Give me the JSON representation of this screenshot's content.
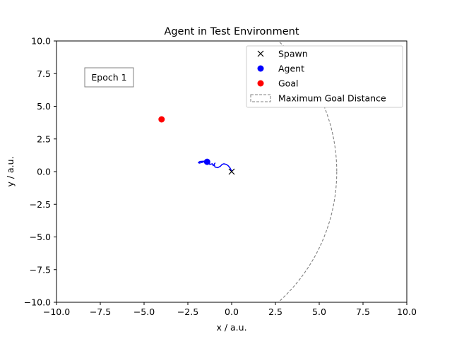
{
  "chart_data": {
    "type": "scatter",
    "title": "Agent in Test Environment",
    "xlabel": "x / a.u.",
    "ylabel": "y / a.u.",
    "xlim": [
      -10,
      10
    ],
    "ylim": [
      -10,
      10
    ],
    "xticks": [
      -10,
      -7.5,
      -5,
      -2.5,
      0,
      2.5,
      5,
      7.5,
      10
    ],
    "yticks": [
      -10,
      -7.5,
      -5,
      -2.5,
      0,
      2.5,
      5,
      7.5,
      10
    ],
    "xtick_labels": [
      "−10.0",
      "−7.5",
      "−5.0",
      "−2.5",
      "0.0",
      "2.5",
      "5.0",
      "7.5",
      "10.0"
    ],
    "ytick_labels": [
      "−10.0",
      "−7.5",
      "−5.0",
      "−2.5",
      "0.0",
      "2.5",
      "5.0",
      "7.5",
      "10.0"
    ],
    "grid": false,
    "annotation": "Epoch 1",
    "legend": {
      "placement": "top-right",
      "entries": [
        {
          "label": "Spawn",
          "marker": "x",
          "color": "#000000"
        },
        {
          "label": "Agent",
          "marker": "circle",
          "color": "#0000ff"
        },
        {
          "label": "Goal",
          "marker": "circle",
          "color": "#ff0000"
        },
        {
          "label": "Maximum Goal Distance",
          "marker": "dashed-box",
          "color": "#808080"
        }
      ]
    },
    "spawn": {
      "x": 0,
      "y": 0,
      "color": "#000000"
    },
    "goal": {
      "x": -4,
      "y": 4,
      "color": "#ff0000"
    },
    "agent": {
      "x": -1.4,
      "y": 0.75,
      "color": "#0000ff"
    },
    "agent_path": {
      "color": "#0000ff",
      "points": [
        [
          0,
          0.05
        ],
        [
          -0.1,
          0.3
        ],
        [
          -0.2,
          0.45
        ],
        [
          -0.3,
          0.55
        ],
        [
          -0.45,
          0.6
        ],
        [
          -0.55,
          0.55
        ],
        [
          -0.65,
          0.4
        ],
        [
          -0.8,
          0.3
        ],
        [
          -0.95,
          0.35
        ],
        [
          -1.0,
          0.55
        ],
        [
          -0.95,
          0.65
        ],
        [
          -1.05,
          0.45
        ],
        [
          -1.1,
          0.6
        ],
        [
          -1.25,
          0.55
        ],
        [
          -1.3,
          0.7
        ],
        [
          -1.45,
          0.85
        ],
        [
          -1.6,
          0.75
        ],
        [
          -1.7,
          0.7
        ],
        [
          -1.85,
          0.65
        ],
        [
          -1.9,
          0.7
        ],
        [
          -1.8,
          0.78
        ],
        [
          -1.6,
          0.8
        ],
        [
          -1.4,
          0.75
        ]
      ]
    },
    "max_goal_distance": {
      "center_x": -4,
      "center_y": 0,
      "radius": 10,
      "color": "#808080"
    }
  }
}
